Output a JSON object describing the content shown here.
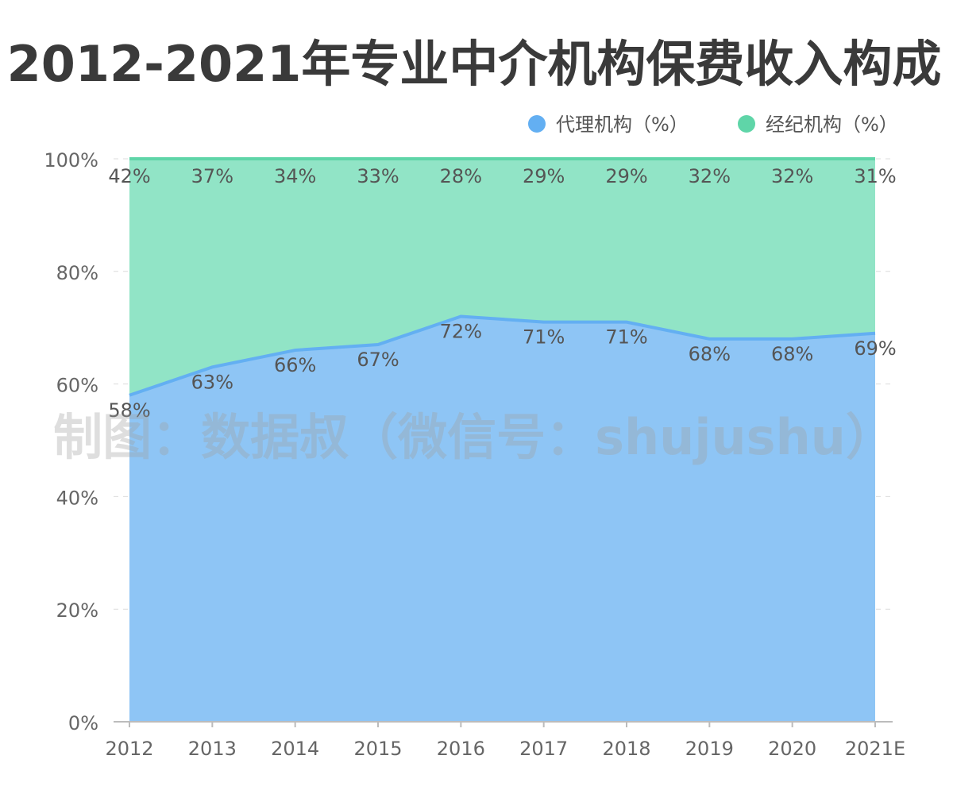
{
  "chart_data": {
    "type": "area",
    "title": "2012-2021年专业中介机构保费收入构成",
    "watermark": "制图：数据叔（微信号：shujushu）",
    "categories": [
      "2012",
      "2013",
      "2014",
      "2015",
      "2016",
      "2017",
      "2018",
      "2019",
      "2020",
      "2021E"
    ],
    "stacked": true,
    "series": [
      {
        "name": "代理机构（%）",
        "values": [
          58,
          63,
          66,
          67,
          72,
          71,
          71,
          68,
          68,
          69
        ],
        "labels": [
          "58%",
          "63%",
          "66%",
          "67%",
          "72%",
          "71%",
          "71%",
          "68%",
          "68%",
          "69%"
        ],
        "color": "#63aff2",
        "fill": "#8ec5f5"
      },
      {
        "name": "经纪机构（%）",
        "values": [
          42,
          37,
          34,
          33,
          28,
          29,
          29,
          32,
          32,
          31
        ],
        "labels": [
          "42%",
          "37%",
          "34%",
          "33%",
          "28%",
          "29%",
          "29%",
          "32%",
          "32%",
          "31%"
        ],
        "color": "#5fd5a8",
        "fill": "#91e4c6"
      }
    ],
    "y_ticks": [
      "0%",
      "20%",
      "40%",
      "60%",
      "80%",
      "100%"
    ],
    "y_tick_values": [
      0,
      20,
      40,
      60,
      80,
      100
    ],
    "ylim": [
      0,
      100
    ],
    "grid": true,
    "legend_position": "top-right"
  }
}
